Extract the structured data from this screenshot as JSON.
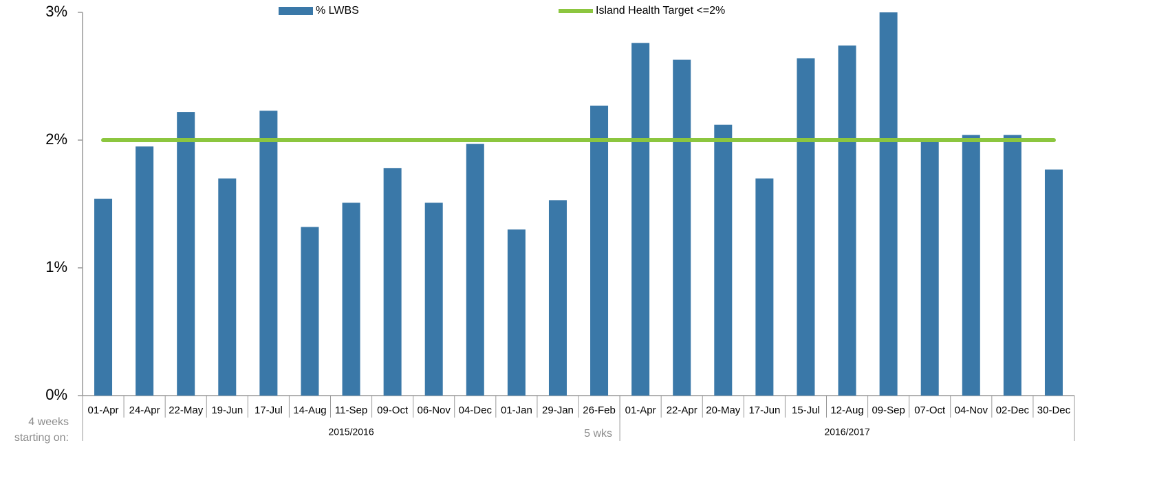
{
  "chart_data": {
    "type": "bar",
    "categories": [
      "01-Apr",
      "24-Apr",
      "22-May",
      "19-Jun",
      "17-Jul",
      "14-Aug",
      "11-Sep",
      "09-Oct",
      "06-Nov",
      "04-Dec",
      "01-Jan",
      "29-Jan",
      "26-Feb",
      "01-Apr",
      "22-Apr",
      "20-May",
      "17-Jun",
      "15-Jul",
      "12-Aug",
      "09-Sep",
      "07-Oct",
      "04-Nov",
      "02-Dec",
      "30-Dec"
    ],
    "series": [
      {
        "name": "% LWBS",
        "type": "bar",
        "color": "#3a78a8",
        "values": [
          1.54,
          1.95,
          2.22,
          1.7,
          2.23,
          1.32,
          1.51,
          1.78,
          1.51,
          1.97,
          1.3,
          1.53,
          2.27,
          2.76,
          2.63,
          2.12,
          1.7,
          2.64,
          2.74,
          3.0,
          1.99,
          2.04,
          2.04,
          1.77
        ]
      },
      {
        "name": "Island Health Target <=2%",
        "type": "line",
        "color": "#8cc63f",
        "values": [
          2,
          2,
          2,
          2,
          2,
          2,
          2,
          2,
          2,
          2,
          2,
          2,
          2,
          2,
          2,
          2,
          2,
          2,
          2,
          2,
          2,
          2,
          2,
          2
        ]
      }
    ],
    "groups": [
      {
        "name": "2015/2016",
        "count": 13
      },
      {
        "name": "2016/2017",
        "count": 11
      }
    ],
    "annotations": [
      "5 wks"
    ],
    "x_note": [
      "4 weeks",
      "starting on:"
    ],
    "ylim": [
      0,
      3
    ],
    "yticks": [
      {
        "value": 0,
        "label": "0%"
      },
      {
        "value": 1,
        "label": "1%"
      },
      {
        "value": 2,
        "label": "2%"
      },
      {
        "value": 3,
        "label": "3%"
      }
    ]
  }
}
